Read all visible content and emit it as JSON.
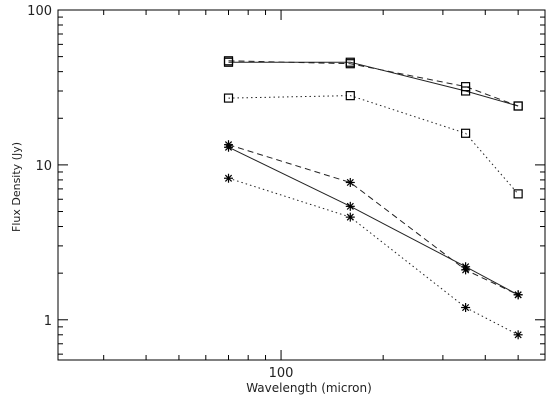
{
  "chart_data": {
    "type": "line",
    "title": "",
    "xlabel": "Wavelength (micron)",
    "ylabel": "Flux Density (Jy)",
    "x_scale": "log",
    "y_scale": "log",
    "xlim": [
      22,
      600
    ],
    "ylim": [
      0.55,
      100
    ],
    "x_tick_labels": [
      {
        "value": 100,
        "label": "100"
      }
    ],
    "y_tick_labels": [
      {
        "value": 1,
        "label": "1"
      },
      {
        "value": 10,
        "label": "10"
      },
      {
        "value": 100,
        "label": "100"
      }
    ],
    "grid": false,
    "series": [
      {
        "marker": "square",
        "line": "solid",
        "x": [
          70,
          160,
          350,
          500
        ],
        "y": [
          46,
          46,
          30,
          24
        ]
      },
      {
        "marker": "square",
        "line": "dashed",
        "x": [
          70,
          160,
          350,
          500
        ],
        "y": [
          47,
          45,
          32,
          24
        ]
      },
      {
        "marker": "square",
        "line": "dotted",
        "x": [
          70,
          160,
          350,
          500
        ],
        "y": [
          27,
          28,
          16,
          6.5
        ]
      },
      {
        "marker": "asterisk",
        "line": "dashed",
        "x": [
          70,
          160,
          350,
          500
        ],
        "y": [
          13.5,
          7.7,
          2.1,
          1.45
        ]
      },
      {
        "marker": "asterisk",
        "line": "solid",
        "x": [
          70,
          160,
          350,
          500
        ],
        "y": [
          13,
          5.4,
          2.2,
          1.45
        ]
      },
      {
        "marker": "asterisk",
        "line": "dotted",
        "x": [
          70,
          160,
          350,
          500
        ],
        "y": [
          8.2,
          4.6,
          1.2,
          0.8
        ]
      }
    ]
  }
}
